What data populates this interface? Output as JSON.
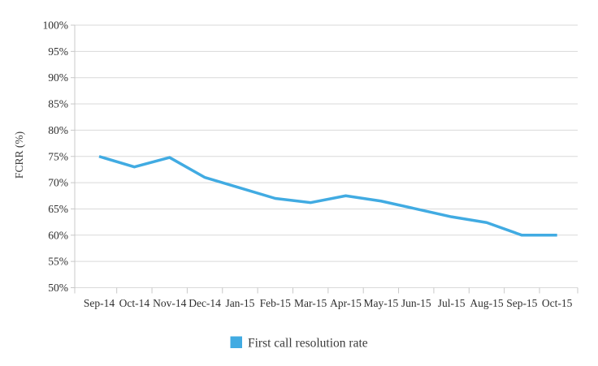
{
  "chart_data": {
    "type": "line",
    "title": "",
    "categories": [
      "Sep-14",
      "Oct-14",
      "Nov-14",
      "Dec-14",
      "Jan-15",
      "Feb-15",
      "Mar-15",
      "Apr-15",
      "May-15",
      "Jun-15",
      "Jul-15",
      "Aug-15",
      "Sep-15",
      "Oct-15"
    ],
    "series": [
      {
        "name": "First call resolution rate",
        "values": [
          75,
          73,
          74.8,
          71,
          69,
          67,
          66.2,
          67.5,
          66.5,
          65,
          63.5,
          62.4,
          60,
          60
        ],
        "color": "#41ABE2"
      }
    ],
    "xlabel": "",
    "ylabel": "FCRR (%)",
    "ylim": [
      50,
      100
    ],
    "ytick_step": 5,
    "ytick_suffix": "%",
    "ytick_labels": [
      "100%",
      "95%",
      "90%",
      "85%",
      "80%",
      "75%",
      "70%",
      "65%",
      "60%",
      "55%",
      "50%"
    ],
    "grid": true,
    "legend_position": "bottom"
  },
  "legend": {
    "items": [
      {
        "label": "First call resolution rate",
        "color": "#41ABE2"
      }
    ]
  },
  "colors": {
    "line": "#41ABE2",
    "grid": "#d9d9d9",
    "axis": "#c8c8c8",
    "text": "#2f2f2f",
    "background": "#ffffff"
  }
}
